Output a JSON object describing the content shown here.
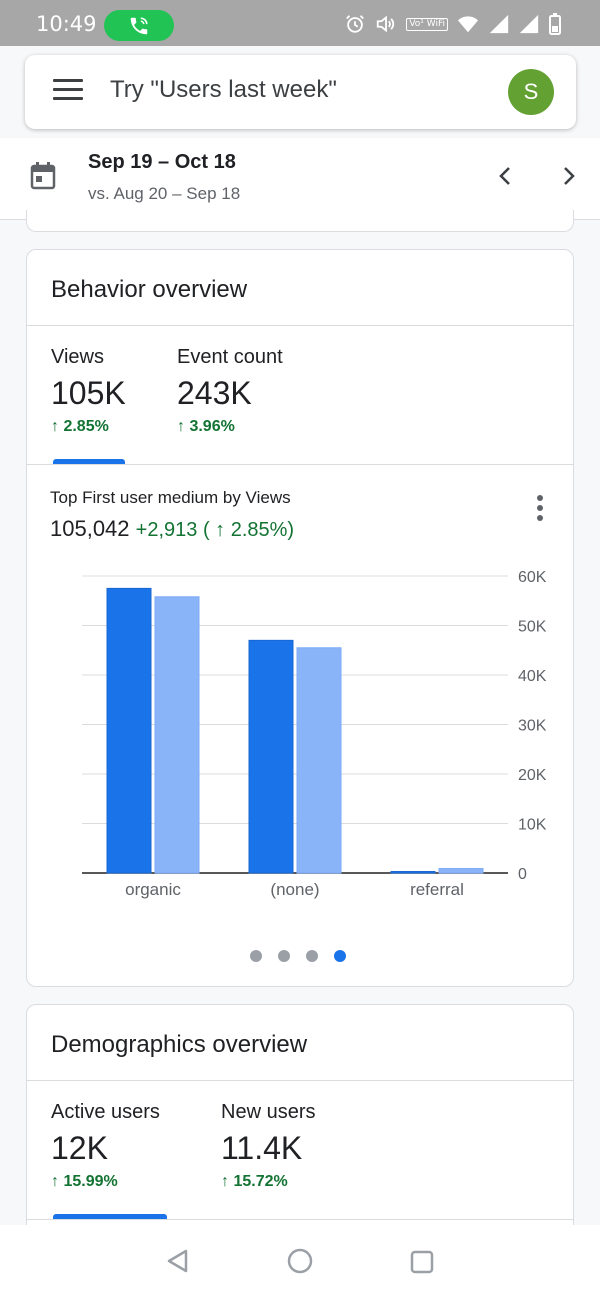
{
  "status_bar": {
    "time": "10:49",
    "volte_label": "Vo¹ WiFi"
  },
  "search": {
    "placeholder": "Try \"Users last week\"",
    "avatar_letter": "S"
  },
  "date_range": {
    "main": "Sep 19 – Oct 18",
    "compare": "vs. Aug 20 – Sep 18"
  },
  "behavior": {
    "title": "Behavior overview",
    "metrics": [
      {
        "label": "Views",
        "value": "105K",
        "change": "↑ 2.85%"
      },
      {
        "label": "Event count",
        "value": "243K",
        "change": "↑ 3.96%"
      }
    ],
    "chart": {
      "title": "Top First user medium by Views",
      "total": "105,042",
      "delta": "+2,913 ( ↑ 2.85%)"
    },
    "pager": {
      "count": 4,
      "active_index": 3
    }
  },
  "demographics": {
    "title": "Demographics overview",
    "metrics": [
      {
        "label": "Active users",
        "value": "12K",
        "change": "↑ 15.99%"
      },
      {
        "label": "New users",
        "value": "11.4K",
        "change": "↑ 15.72%"
      }
    ]
  },
  "colors": {
    "current": "#1a73e8",
    "previous": "#8ab4f8",
    "positive": "#137333",
    "avatar": "#63a133"
  },
  "chart_data": {
    "type": "bar",
    "categories": [
      "organic",
      "(none)",
      "referral"
    ],
    "series": [
      {
        "values": [
          57500,
          47000,
          300
        ]
      },
      {
        "values": [
          55800,
          45500,
          900
        ]
      }
    ],
    "ylim": [
      0,
      60000
    ],
    "yticks": [
      "0",
      "10K",
      "20K",
      "30K",
      "40K",
      "50K",
      "60K"
    ],
    "grid": true,
    "legend": "none"
  }
}
